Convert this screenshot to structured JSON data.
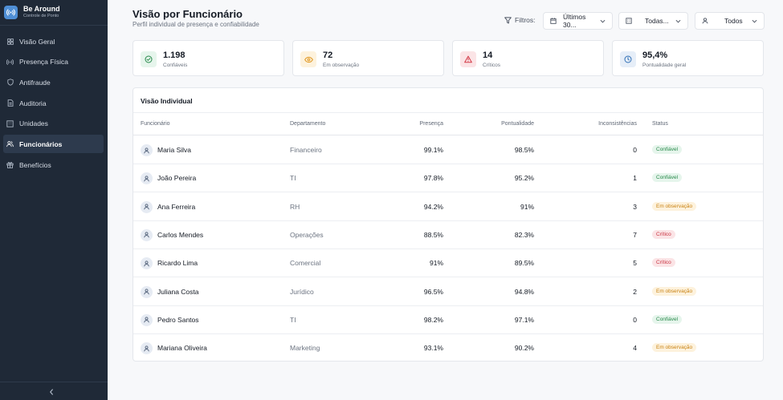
{
  "brand": {
    "name": "Be Around",
    "subtitle": "Controle de Ponto"
  },
  "sidebar": {
    "items": [
      {
        "label": "Visão Geral",
        "icon": "grid-icon"
      },
      {
        "label": "Presença Física",
        "icon": "signal-icon"
      },
      {
        "label": "Antifraude",
        "icon": "shield-icon"
      },
      {
        "label": "Auditoria",
        "icon": "document-icon"
      },
      {
        "label": "Unidades",
        "icon": "building-icon"
      },
      {
        "label": "Funcionários",
        "icon": "users-icon",
        "active": true
      },
      {
        "label": "Benefícios",
        "icon": "gift-icon"
      }
    ],
    "collapse_icon": "chevron-left-icon"
  },
  "header": {
    "title": "Visão por Funcionário",
    "subtitle": "Perfil individual de presença e confiabilidade"
  },
  "filters": {
    "label": "Filtros:",
    "period": "Últimos 30...",
    "unit": "Todas...",
    "person": "Todos"
  },
  "stats": [
    {
      "value": "1.198",
      "label": "Confiáveis",
      "icon": "check-icon",
      "color": "#27894a",
      "bg": "#e6f5ec"
    },
    {
      "value": "72",
      "label": "Em observação",
      "icon": "eye-icon",
      "color": "#e0961e",
      "bg": "#fdf2dd"
    },
    {
      "value": "14",
      "label": "Críticos",
      "icon": "alert-triangle-icon",
      "color": "#d33a47",
      "bg": "#fbe4e6"
    },
    {
      "value": "95,4%",
      "label": "Pontualidade geral",
      "icon": "clock-icon",
      "color": "#2f6fb5",
      "bg": "#e6eef8"
    }
  ],
  "table": {
    "title": "Visão Individual",
    "columns": [
      "Funcionário",
      "Departamento",
      "Presença",
      "Pontualidade",
      "Inconsistências",
      "Status"
    ],
    "rows": [
      {
        "name": "Maria Silva",
        "dept": "Financeiro",
        "presence": "99.1%",
        "punctuality": "98.5%",
        "issues": "0",
        "status": "Confiável",
        "level": "ok"
      },
      {
        "name": "João Pereira",
        "dept": "TI",
        "presence": "97.8%",
        "punctuality": "95.2%",
        "issues": "1",
        "status": "Confiável",
        "level": "ok"
      },
      {
        "name": "Ana Ferreira",
        "dept": "RH",
        "presence": "94.2%",
        "punctuality": "91%",
        "issues": "3",
        "status": "Em observação",
        "level": "obs"
      },
      {
        "name": "Carlos Mendes",
        "dept": "Operações",
        "presence": "88.5%",
        "punctuality": "82.3%",
        "issues": "7",
        "status": "Crítico",
        "level": "crit"
      },
      {
        "name": "Ricardo Lima",
        "dept": "Comercial",
        "presence": "91%",
        "punctuality": "89.5%",
        "issues": "5",
        "status": "Crítico",
        "level": "crit"
      },
      {
        "name": "Juliana Costa",
        "dept": "Jurídico",
        "presence": "96.5%",
        "punctuality": "94.8%",
        "issues": "2",
        "status": "Em observação",
        "level": "obs"
      },
      {
        "name": "Pedro Santos",
        "dept": "TI",
        "presence": "98.2%",
        "punctuality": "97.1%",
        "issues": "0",
        "status": "Confiável",
        "level": "ok"
      },
      {
        "name": "Mariana Oliveira",
        "dept": "Marketing",
        "presence": "93.1%",
        "punctuality": "90.2%",
        "issues": "4",
        "status": "Em observação",
        "level": "obs"
      }
    ]
  }
}
